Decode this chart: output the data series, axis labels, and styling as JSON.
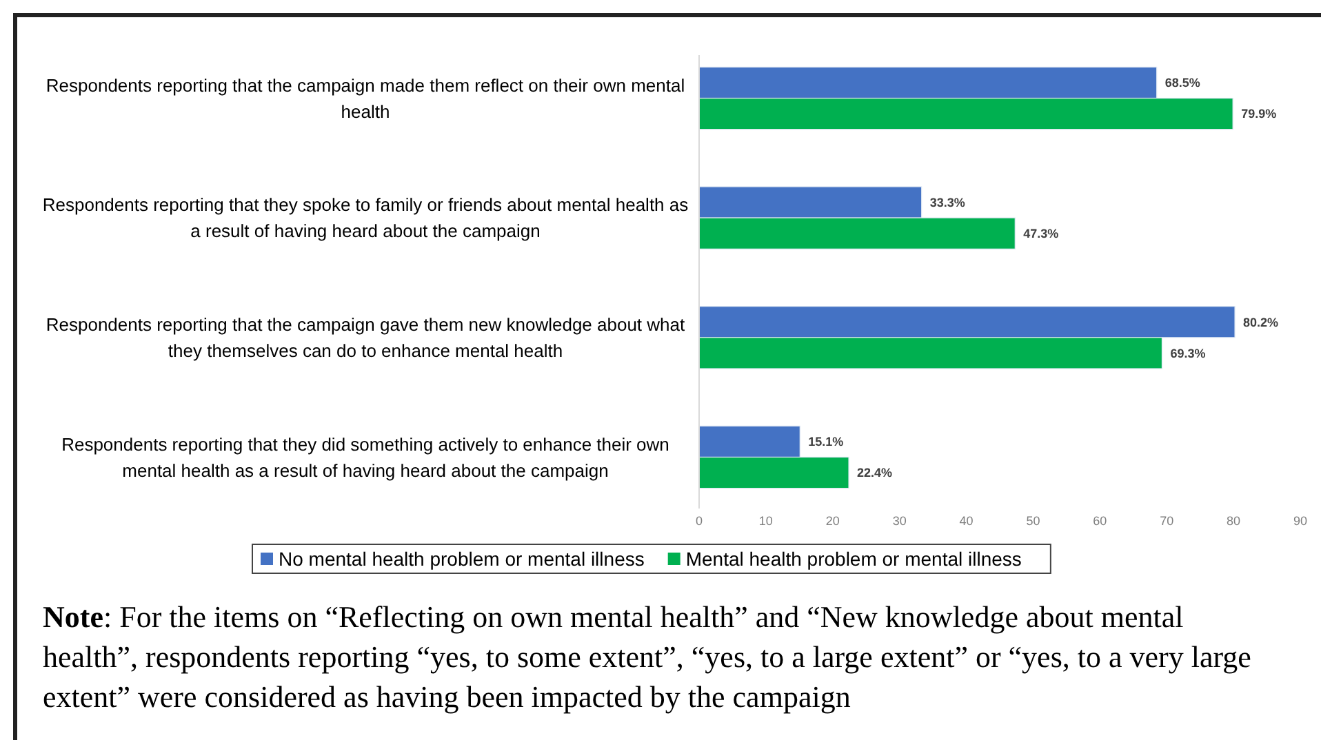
{
  "chart_data": {
    "type": "bar",
    "orientation": "horizontal",
    "categories": [
      "Respondents reporting that the campaign made them reflect on their own mental health",
      "Respondents reporting that they spoke to family or friends about mental health as a result of having heard about the campaign",
      "Respondents reporting that the campaign gave them new knowledge about what they themselves can do to enhance mental health",
      "Respondents reporting that they did something actively to enhance their own mental health as a result of having heard about the campaign"
    ],
    "series": [
      {
        "name": "No mental health problem or mental illness",
        "color": "#4472c4",
        "values": [
          68.5,
          33.3,
          80.2,
          15.1
        ],
        "value_labels": [
          "68.5%",
          "33.3%",
          "80.2%",
          "15.1%"
        ]
      },
      {
        "name": "Mental health problem or mental illness",
        "color": "#00b050",
        "values": [
          79.9,
          47.3,
          69.3,
          22.4
        ],
        "value_labels": [
          "79.9%",
          "47.3%",
          "69.3%",
          "22.4%"
        ]
      }
    ],
    "xlim": [
      0,
      90
    ],
    "xticks": [
      0,
      10,
      20,
      30,
      40,
      50,
      60,
      70,
      80,
      90
    ],
    "grid": false,
    "legend": "bottom",
    "annotations": [
      "Note: For the items on “Reflecting on own mental health” and “New knowledge about mental health”, respondents reporting “yes, to some extent”, “yes, to a large extent” or “yes, to a very large extent” were considered as having been impacted by the campaign"
    ]
  }
}
